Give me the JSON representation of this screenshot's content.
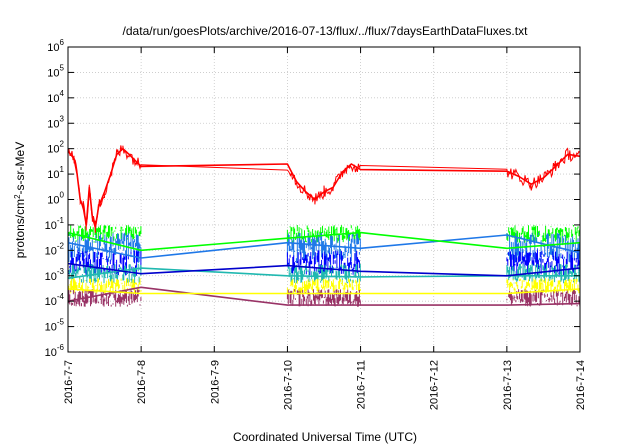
{
  "chart_data": {
    "type": "line",
    "title": "/data/run/goesPlots/archive/2016-07-13/flux/../flux/7daysEarthDataFluxes.txt",
    "xlabel": "Coordinated Universal Time (UTC)",
    "ylabel": {
      "prefix": "protons/cm",
      "sup": "2",
      "suffix": "-s-sr-MeV"
    },
    "yscale": "log",
    "ylim": [
      -6,
      6
    ],
    "y_ticks": [
      {
        "exp": -6,
        "base": "10",
        "sup": "-6"
      },
      {
        "exp": -5,
        "base": "10",
        "sup": "-5"
      },
      {
        "exp": -4,
        "base": "10",
        "sup": "-4"
      },
      {
        "exp": -3,
        "base": "10",
        "sup": "-3"
      },
      {
        "exp": -2,
        "base": "10",
        "sup": "-2"
      },
      {
        "exp": -1,
        "base": "10",
        "sup": "-1"
      },
      {
        "exp": 0,
        "base": "10",
        "sup": "0"
      },
      {
        "exp": 1,
        "base": "10",
        "sup": "1"
      },
      {
        "exp": 2,
        "base": "10",
        "sup": "2"
      },
      {
        "exp": 3,
        "base": "10",
        "sup": "3"
      },
      {
        "exp": 4,
        "base": "10",
        "sup": "4"
      },
      {
        "exp": 5,
        "base": "10",
        "sup": "5"
      },
      {
        "exp": 6,
        "base": "10",
        "sup": "6"
      }
    ],
    "x_range": [
      "2016-7-7",
      "2016-7-14"
    ],
    "x_ticks": [
      "2016-7-7",
      "2016-7-8",
      "2016-7-9",
      "2016-7-10",
      "2016-7-11",
      "2016-7-12",
      "2016-7-13",
      "2016-7-14"
    ],
    "grid": true,
    "legend": "none",
    "series": [
      {
        "color": "#ff0000",
        "points": [
          [
            "2016-7-7 00:00",
            80
          ],
          [
            "2016-7-7 02:00",
            40
          ],
          [
            "2016-7-7 03:00",
            10
          ],
          [
            "2016-7-7 04:00",
            1
          ],
          [
            "2016-7-7 05:00",
            0.5
          ],
          [
            "2016-7-7 06:00",
            0.1
          ],
          [
            "2016-7-7 07:00",
            3
          ],
          [
            "2016-7-7 08:00",
            0.2
          ],
          [
            "2016-7-7 09:00",
            0.08
          ],
          [
            "2016-7-7 10:00",
            0.5
          ],
          [
            "2016-7-7 12:00",
            2
          ],
          [
            "2016-7-7 14:00",
            10
          ],
          [
            "2016-7-7 16:00",
            60
          ],
          [
            "2016-7-7 18:00",
            100
          ],
          [
            "2016-7-7 20:00",
            60
          ],
          [
            "2016-7-8 00:00",
            20
          ],
          [
            "2016-7-10 00:00",
            25
          ],
          [
            "2016-7-10 03:00",
            5
          ],
          [
            "2016-7-10 06:00",
            2
          ],
          [
            "2016-7-10 09:00",
            1
          ],
          [
            "2016-7-10 12:00",
            2
          ],
          [
            "2016-7-10 15:00",
            3
          ],
          [
            "2016-7-10 18:00",
            12
          ],
          [
            "2016-7-10 21:00",
            25
          ],
          [
            "2016-7-11 00:00",
            15
          ],
          [
            "2016-7-13 00:00",
            13
          ],
          [
            "2016-7-13 04:00",
            8
          ],
          [
            "2016-7-13 08:00",
            4
          ],
          [
            "2016-7-13 12:00",
            7
          ],
          [
            "2016-7-13 16:00",
            20
          ],
          [
            "2016-7-13 20:00",
            60
          ],
          [
            "2016-7-14 00:00",
            50
          ]
        ]
      },
      {
        "color": "#00ff00",
        "points": [
          [
            "2016-7-7 00:00",
            0.05
          ],
          [
            "2016-7-8 00:00",
            0.01
          ],
          [
            "2016-7-10 00:00",
            0.03
          ],
          [
            "2016-7-11 00:00",
            0.05
          ],
          [
            "2016-7-13 00:00",
            0.012
          ],
          [
            "2016-7-14 00:00",
            0.02
          ]
        ]
      },
      {
        "color": "#1f78e8",
        "points": [
          [
            "2016-7-7 00:00",
            0.02
          ],
          [
            "2016-7-8 00:00",
            0.005
          ],
          [
            "2016-7-10 00:00",
            0.02
          ],
          [
            "2016-7-11 00:00",
            0.012
          ],
          [
            "2016-7-13 00:00",
            0.04
          ],
          [
            "2016-7-14 00:00",
            0.008
          ]
        ]
      },
      {
        "color": "#0000cc",
        "points": [
          [
            "2016-7-7 00:00",
            0.003
          ],
          [
            "2016-7-8 00:00",
            0.0012
          ],
          [
            "2016-7-10 00:00",
            0.0025
          ],
          [
            "2016-7-11 00:00",
            0.0015
          ],
          [
            "2016-7-13 00:00",
            0.001
          ],
          [
            "2016-7-14 00:00",
            0.002
          ]
        ]
      },
      {
        "color": "#20b8b0",
        "points": [
          [
            "2016-7-7 00:00",
            0.0008
          ],
          [
            "2016-7-8 00:00",
            0.002
          ],
          [
            "2016-7-10 00:00",
            0.001
          ],
          [
            "2016-7-11 00:00",
            0.0009
          ],
          [
            "2016-7-13 00:00",
            0.001
          ],
          [
            "2016-7-14 00:00",
            0.001
          ]
        ]
      },
      {
        "color": "#ffff00",
        "points": [
          [
            "2016-7-7 00:00",
            0.0003
          ],
          [
            "2016-7-8 00:00",
            0.0002
          ],
          [
            "2016-7-10 00:00",
            0.0002
          ],
          [
            "2016-7-11 00:00",
            0.0002
          ],
          [
            "2016-7-13 00:00",
            0.0002
          ],
          [
            "2016-7-14 00:00",
            0.0003
          ]
        ]
      },
      {
        "color": "#993366",
        "points": [
          [
            "2016-7-7 00:00",
            0.0001
          ],
          [
            "2016-7-8 00:00",
            0.00035
          ],
          [
            "2016-7-10 00:00",
            7e-05
          ],
          [
            "2016-7-11 00:00",
            7e-05
          ],
          [
            "2016-7-13 00:00",
            7e-05
          ],
          [
            "2016-7-14 00:00",
            8e-05
          ]
        ]
      }
    ],
    "noise_bands": [
      {
        "color": "#00ff00",
        "segments": [
          [
            "2016-7-7 00:00",
            "2016-7-8 00:00",
            0.02,
            0.1
          ],
          [
            "2016-7-10 00:00",
            "2016-7-11 00:00",
            0.02,
            0.1
          ],
          [
            "2016-7-13 00:00",
            "2016-7-14 00:00",
            0.02,
            0.1
          ]
        ]
      },
      {
        "color": "#1f78e8",
        "segments": [
          [
            "2016-7-7 00:00",
            "2016-7-8 00:00",
            0.003,
            0.05
          ],
          [
            "2016-7-10 00:00",
            "2016-7-11 00:00",
            0.003,
            0.05
          ],
          [
            "2016-7-13 00:00",
            "2016-7-14 00:00",
            0.003,
            0.05
          ]
        ]
      },
      {
        "color": "#0000ff",
        "segments": [
          [
            "2016-7-7 00:00",
            "2016-7-8 00:00",
            0.001,
            0.01
          ],
          [
            "2016-7-10 00:00",
            "2016-7-11 00:00",
            0.001,
            0.01
          ],
          [
            "2016-7-13 00:00",
            "2016-7-14 00:00",
            0.001,
            0.01
          ]
        ]
      },
      {
        "color": "#20b8b0",
        "segments": [
          [
            "2016-7-7 00:00",
            "2016-7-8 00:00",
            0.0005,
            0.003
          ],
          [
            "2016-7-10 00:00",
            "2016-7-11 00:00",
            0.0005,
            0.003
          ],
          [
            "2016-7-13 00:00",
            "2016-7-14 00:00",
            0.0005,
            0.003
          ]
        ]
      },
      {
        "color": "#ffff00",
        "segments": [
          [
            "2016-7-7 00:00",
            "2016-7-8 00:00",
            0.0002,
            0.0008
          ],
          [
            "2016-7-10 00:00",
            "2016-7-11 00:00",
            0.0002,
            0.0008
          ],
          [
            "2016-7-13 00:00",
            "2016-7-14 00:00",
            0.0002,
            0.0008
          ]
        ]
      },
      {
        "color": "#993366",
        "segments": [
          [
            "2016-7-7 00:00",
            "2016-7-8 00:00",
            6e-05,
            0.0003
          ],
          [
            "2016-7-10 00:00",
            "2016-7-11 00:00",
            6e-05,
            0.0003
          ],
          [
            "2016-7-13 00:00",
            "2016-7-14 00:00",
            6e-05,
            0.0003
          ]
        ]
      }
    ]
  }
}
